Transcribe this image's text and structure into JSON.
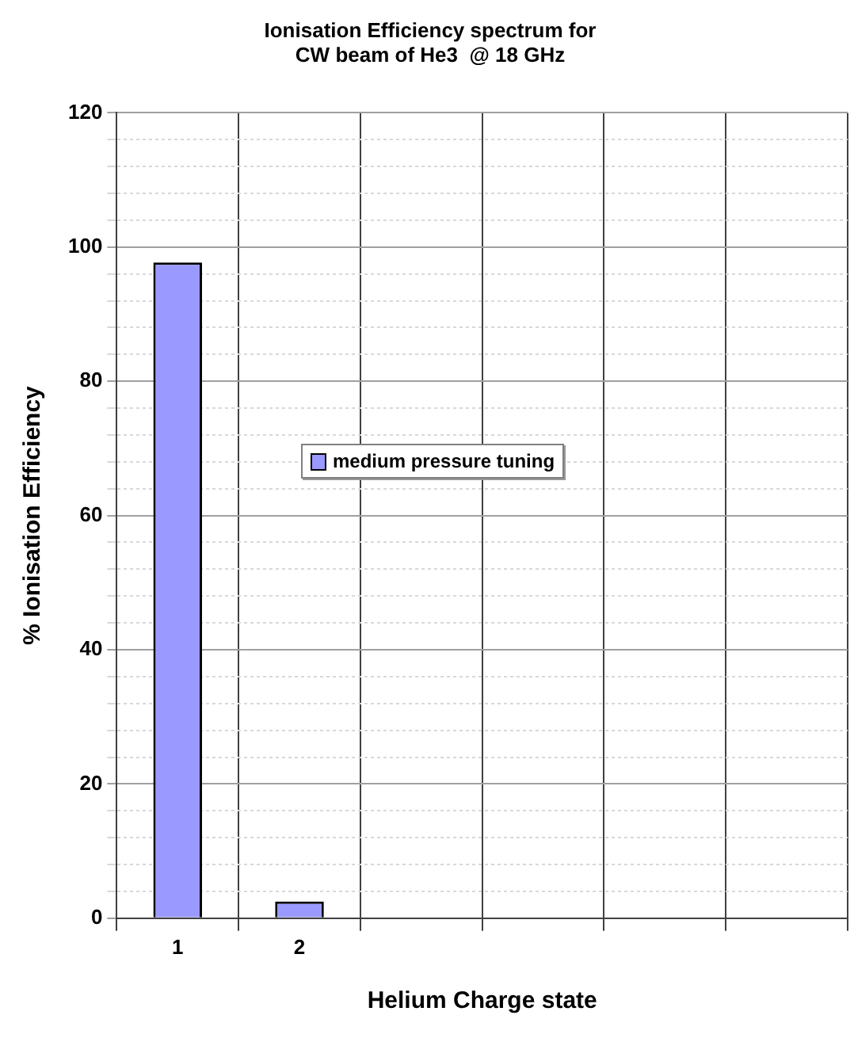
{
  "chart_data": {
    "type": "bar",
    "title": "Ionisation Efficiency spectrum for\nCW beam of He3  @ 18 GHz",
    "xlabel": "Helium Charge state",
    "ylabel": "% Ionisation Efficiency",
    "categories": [
      "1",
      "2",
      null,
      null,
      null,
      null
    ],
    "series": [
      {
        "name": "medium pressure tuning",
        "color": "#9999ff",
        "values": [
          97.7,
          2.5,
          null,
          null,
          null,
          null
        ]
      }
    ],
    "ylim": [
      0,
      120
    ],
    "yticks": [
      0,
      {
        "value": 4,
        "label": null
      },
      {
        "value": 8,
        "label": null
      },
      {
        "value": 12,
        "label": null
      },
      {
        "value": 16,
        "label": null
      },
      20,
      {
        "value": 24,
        "label": null
      },
      {
        "value": 28,
        "label": null
      },
      {
        "value": 32,
        "label": null
      },
      {
        "value": 36,
        "label": null
      },
      40,
      {
        "value": 44,
        "label": null
      },
      {
        "value": 48,
        "label": null
      },
      {
        "value": 52,
        "label": null
      },
      {
        "value": 56,
        "label": null
      },
      60,
      {
        "value": 64,
        "label": null
      },
      {
        "value": 68,
        "label": null
      },
      {
        "value": 72,
        "label": null
      },
      {
        "value": 76,
        "label": null
      },
      80,
      {
        "value": 84,
        "label": null
      },
      {
        "value": 88,
        "label": null
      },
      {
        "value": 92,
        "label": null
      },
      {
        "value": 96,
        "label": null
      },
      100,
      {
        "value": 104,
        "label": null
      },
      {
        "value": 108,
        "label": null
      },
      {
        "value": 112,
        "label": null
      },
      {
        "value": 116,
        "label": null
      },
      120
    ],
    "grid": true,
    "legend": "left"
  }
}
